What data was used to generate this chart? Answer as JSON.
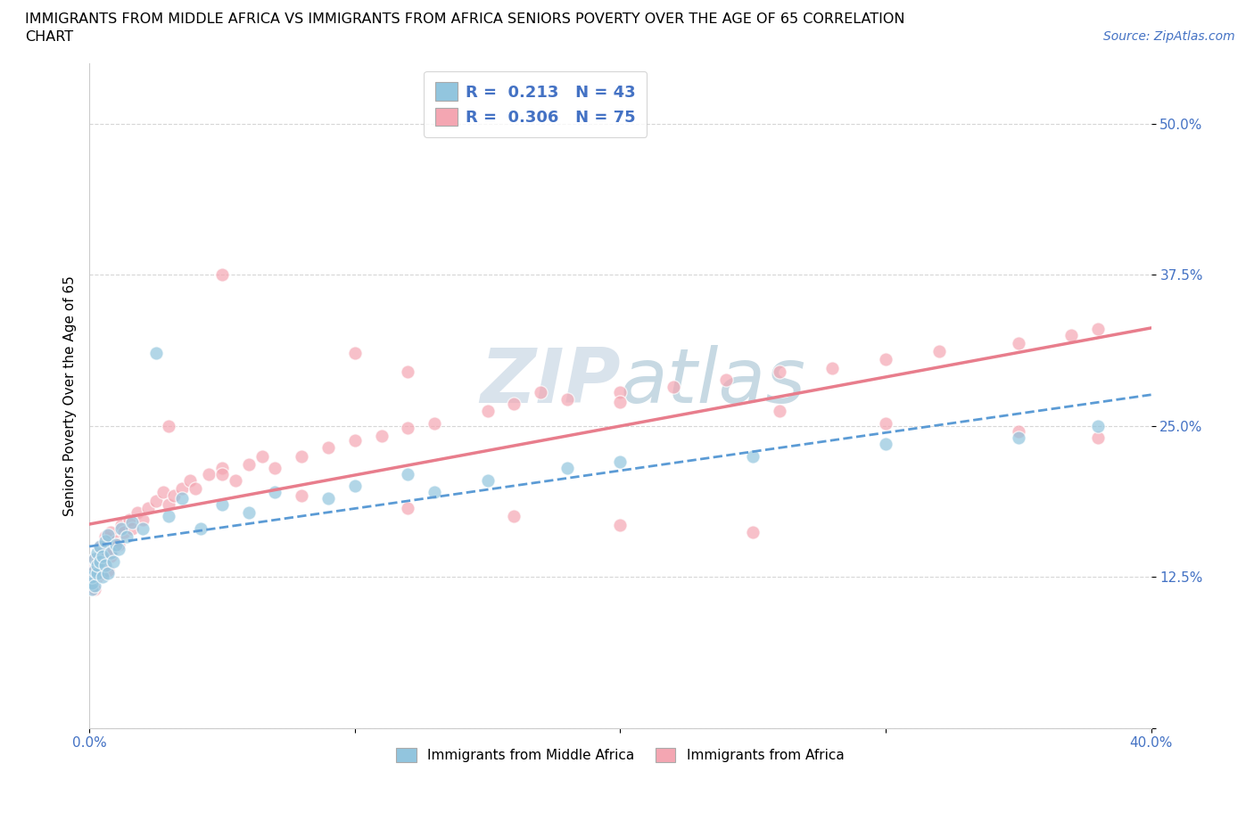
{
  "title_line1": "IMMIGRANTS FROM MIDDLE AFRICA VS IMMIGRANTS FROM AFRICA SENIORS POVERTY OVER THE AGE OF 65 CORRELATION",
  "title_line2": "CHART",
  "source_text": "Source: ZipAtlas.com",
  "ylabel": "Seniors Poverty Over the Age of 65",
  "xlim": [
    0.0,
    0.4
  ],
  "ylim": [
    0.0,
    0.55
  ],
  "legend1_R": "0.213",
  "legend1_N": "43",
  "legend2_R": "0.306",
  "legend2_N": "75",
  "color_blue": "#92C5DE",
  "color_blue_line": "#5B9BD5",
  "color_pink": "#F4A6B2",
  "color_pink_line": "#E87D8C",
  "watermark_color": "#C8D8E8",
  "blue_scatter_x": [
    0.001,
    0.001,
    0.001,
    0.002,
    0.002,
    0.002,
    0.003,
    0.003,
    0.003,
    0.004,
    0.004,
    0.005,
    0.005,
    0.006,
    0.006,
    0.007,
    0.007,
    0.008,
    0.009,
    0.01,
    0.011,
    0.012,
    0.014,
    0.016,
    0.02,
    0.025,
    0.03,
    0.035,
    0.042,
    0.05,
    0.06,
    0.07,
    0.09,
    0.1,
    0.12,
    0.13,
    0.15,
    0.18,
    0.2,
    0.25,
    0.3,
    0.35,
    0.38
  ],
  "blue_scatter_y": [
    0.115,
    0.12,
    0.125,
    0.13,
    0.118,
    0.14,
    0.128,
    0.135,
    0.145,
    0.138,
    0.15,
    0.125,
    0.142,
    0.135,
    0.155,
    0.128,
    0.16,
    0.145,
    0.138,
    0.152,
    0.148,
    0.165,
    0.158,
    0.17,
    0.165,
    0.31,
    0.175,
    0.19,
    0.165,
    0.185,
    0.178,
    0.195,
    0.19,
    0.2,
    0.21,
    0.195,
    0.205,
    0.215,
    0.22,
    0.225,
    0.235,
    0.24,
    0.25
  ],
  "pink_scatter_x": [
    0.001,
    0.001,
    0.001,
    0.002,
    0.002,
    0.002,
    0.003,
    0.003,
    0.004,
    0.004,
    0.005,
    0.005,
    0.006,
    0.006,
    0.007,
    0.008,
    0.008,
    0.009,
    0.01,
    0.011,
    0.012,
    0.013,
    0.015,
    0.016,
    0.018,
    0.02,
    0.022,
    0.025,
    0.028,
    0.03,
    0.032,
    0.035,
    0.038,
    0.04,
    0.045,
    0.05,
    0.055,
    0.06,
    0.065,
    0.07,
    0.08,
    0.09,
    0.1,
    0.11,
    0.12,
    0.13,
    0.15,
    0.16,
    0.18,
    0.2,
    0.22,
    0.24,
    0.26,
    0.28,
    0.3,
    0.32,
    0.35,
    0.37,
    0.38,
    0.03,
    0.05,
    0.08,
    0.12,
    0.16,
    0.2,
    0.25,
    0.05,
    0.1,
    0.12,
    0.17,
    0.2,
    0.26,
    0.3,
    0.35,
    0.38
  ],
  "pink_scatter_y": [
    0.118,
    0.122,
    0.128,
    0.115,
    0.132,
    0.14,
    0.125,
    0.138,
    0.142,
    0.15,
    0.128,
    0.145,
    0.135,
    0.158,
    0.13,
    0.142,
    0.162,
    0.148,
    0.155,
    0.152,
    0.168,
    0.162,
    0.172,
    0.165,
    0.178,
    0.172,
    0.182,
    0.188,
    0.195,
    0.185,
    0.192,
    0.198,
    0.205,
    0.198,
    0.21,
    0.215,
    0.205,
    0.218,
    0.225,
    0.215,
    0.225,
    0.232,
    0.238,
    0.242,
    0.248,
    0.252,
    0.262,
    0.268,
    0.272,
    0.278,
    0.282,
    0.288,
    0.295,
    0.298,
    0.305,
    0.312,
    0.318,
    0.325,
    0.33,
    0.25,
    0.21,
    0.192,
    0.182,
    0.175,
    0.168,
    0.162,
    0.375,
    0.31,
    0.295,
    0.278,
    0.27,
    0.262,
    0.252,
    0.245,
    0.24
  ]
}
